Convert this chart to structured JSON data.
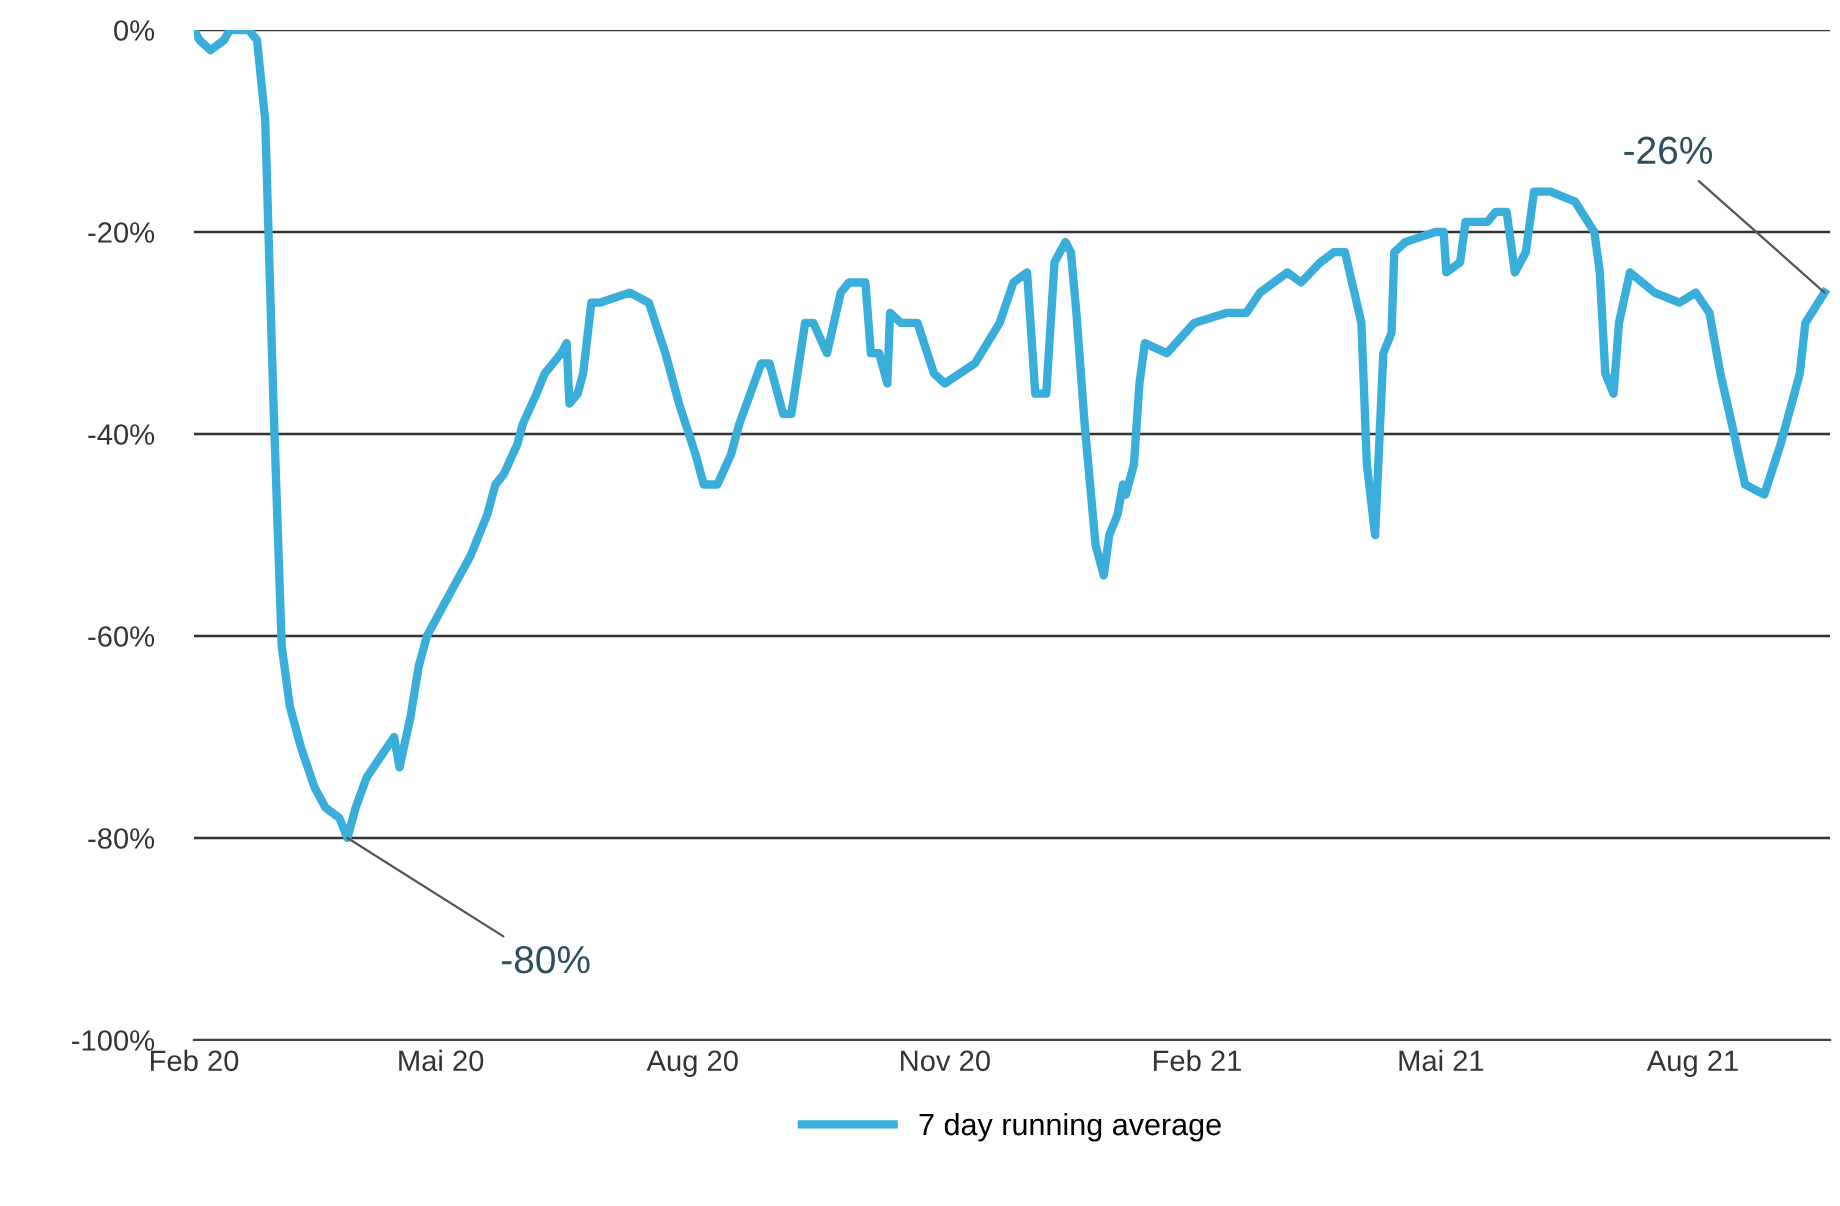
{
  "chart_data": {
    "type": "line",
    "x": [
      "2020-02-01",
      "2020-02-03",
      "2020-02-07",
      "2020-02-12",
      "2020-02-14",
      "2020-02-18",
      "2020-02-21",
      "2020-02-24",
      "2020-02-27",
      "2020-03-01",
      "2020-03-04",
      "2020-03-07",
      "2020-03-11",
      "2020-03-16",
      "2020-03-20",
      "2020-03-25",
      "2020-03-28",
      "2020-03-31",
      "2020-04-04",
      "2020-04-09",
      "2020-04-14",
      "2020-04-16",
      "2020-04-20",
      "2020-04-23",
      "2020-04-26",
      "2020-05-04",
      "2020-05-12",
      "2020-05-18",
      "2020-05-21",
      "2020-05-24",
      "2020-05-29",
      "2020-05-31",
      "2020-06-05",
      "2020-06-08",
      "2020-06-11",
      "2020-06-14",
      "2020-06-16",
      "2020-06-17",
      "2020-06-20",
      "2020-06-22",
      "2020-06-25",
      "2020-06-28",
      "2020-07-09",
      "2020-07-16",
      "2020-07-22",
      "2020-07-27",
      "2020-08-02",
      "2020-08-05",
      "2020-08-10",
      "2020-08-15",
      "2020-08-18",
      "2020-08-26",
      "2020-08-29",
      "2020-09-03",
      "2020-09-06",
      "2020-09-11",
      "2020-09-14",
      "2020-09-19",
      "2020-09-24",
      "2020-09-27",
      "2020-10-03",
      "2020-10-05",
      "2020-10-08",
      "2020-10-11",
      "2020-10-12",
      "2020-10-16",
      "2020-10-22",
      "2020-10-28",
      "2020-11-01",
      "2020-11-12",
      "2020-11-21",
      "2020-11-26",
      "2020-12-01",
      "2020-12-04",
      "2020-12-08",
      "2020-12-11",
      "2020-12-15",
      "2020-12-17",
      "2020-12-19",
      "2020-12-22",
      "2020-12-26",
      "2020-12-29",
      "2020-12-31",
      "2021-01-03",
      "2021-01-05",
      "2021-01-06",
      "2021-01-09",
      "2021-01-11",
      "2021-01-13",
      "2021-01-21",
      "2021-01-31",
      "2021-02-12",
      "2021-02-19",
      "2021-02-24",
      "2021-03-06",
      "2021-03-11",
      "2021-03-18",
      "2021-03-23",
      "2021-03-27",
      "2021-04-02",
      "2021-04-04",
      "2021-04-07",
      "2021-04-10",
      "2021-04-13",
      "2021-04-14",
      "2021-04-18",
      "2021-04-29",
      "2021-05-02",
      "2021-05-03",
      "2021-05-08",
      "2021-05-10",
      "2021-05-18",
      "2021-05-21",
      "2021-05-25",
      "2021-05-28",
      "2021-06-01",
      "2021-06-04",
      "2021-06-10",
      "2021-06-19",
      "2021-06-26",
      "2021-06-28",
      "2021-06-30",
      "2021-07-03",
      "2021-07-05",
      "2021-07-09",
      "2021-07-18",
      "2021-07-27",
      "2021-08-02",
      "2021-08-07",
      "2021-08-11",
      "2021-08-16",
      "2021-08-20",
      "2021-08-27",
      "2021-09-02",
      "2021-09-09",
      "2021-09-11",
      "2021-09-18"
    ],
    "series": [
      {
        "name": "7 day running average",
        "color": "#3aaedb",
        "values": [
          0,
          -1,
          -2,
          -1,
          0,
          0,
          0,
          -1,
          -9,
          -37,
          -61,
          -67,
          -71,
          -75,
          -77,
          -78,
          -80,
          -77,
          -74,
          -72,
          -70,
          -73,
          -68,
          -63,
          -60,
          -56,
          -52,
          -48,
          -45,
          -44,
          -41,
          -39,
          -36,
          -34,
          -33,
          -32,
          -31,
          -37,
          -36,
          -34,
          -27,
          -27,
          -26,
          -27,
          -32,
          -37,
          -42,
          -45,
          -45,
          -42,
          -39,
          -33,
          -33,
          -38,
          -38,
          -29,
          -29,
          -32,
          -26,
          -25,
          -25,
          -32,
          -32,
          -35,
          -28,
          -29,
          -29,
          -34,
          -35,
          -33,
          -29,
          -25,
          -24,
          -36,
          -36,
          -23,
          -21,
          -22,
          -28,
          -39,
          -51,
          -54,
          -50,
          -48,
          -45,
          -46,
          -43,
          -35,
          -31,
          -32,
          -29,
          -28,
          -28,
          -26,
          -24,
          -25,
          -23,
          -22,
          -22,
          -29,
          -43,
          -50,
          -32,
          -30,
          -22,
          -21,
          -20,
          -20,
          -24,
          -23,
          -19,
          -19,
          -18,
          -18,
          -24,
          -22,
          -16,
          -16,
          -17,
          -20,
          -24,
          -34,
          -36,
          -29,
          -24,
          -26,
          -27,
          -26,
          -28,
          -34,
          -40,
          -45,
          -46,
          -41,
          -34,
          -29,
          -26
        ]
      }
    ],
    "xlim": [
      "2020-02-01",
      "2021-09-20"
    ],
    "xticks": [
      {
        "value": "2020-02-01",
        "label": "Feb 20"
      },
      {
        "value": "2020-05-01",
        "label": "Mai 20"
      },
      {
        "value": "2020-08-01",
        "label": "Aug 20"
      },
      {
        "value": "2020-11-01",
        "label": "Nov 20"
      },
      {
        "value": "2021-02-01",
        "label": "Feb 21"
      },
      {
        "value": "2021-05-01",
        "label": "Mai 21"
      },
      {
        "value": "2021-08-01",
        "label": "Aug 21"
      }
    ],
    "ylim": [
      -100,
      0
    ],
    "yticks": [
      {
        "value": 0,
        "label": "0%"
      },
      {
        "value": -20,
        "label": "-20%"
      },
      {
        "value": -40,
        "label": "-40%"
      },
      {
        "value": -60,
        "label": "-60%"
      },
      {
        "value": -80,
        "label": "-80%"
      },
      {
        "value": -100,
        "label": "-100%"
      }
    ],
    "grid": "y",
    "legend": "bottom",
    "line_style": "solid",
    "marker": "none",
    "annotations": [
      {
        "text": "-80%",
        "x": "2020-03-28",
        "y": -80
      },
      {
        "text": "-26%",
        "x": "2021-09-18",
        "y": -26
      }
    ]
  }
}
